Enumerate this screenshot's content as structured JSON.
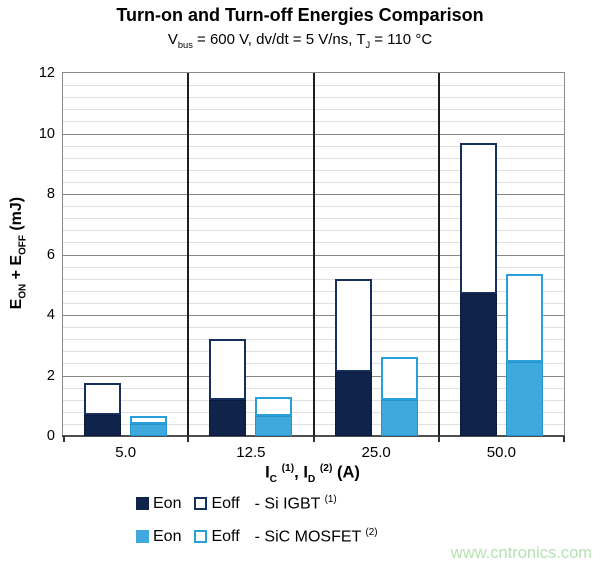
{
  "title": "Turn-on and Turn-off Energies Comparison",
  "subtitle_segments": [
    [
      "V",
      ""
    ],
    [
      "bus",
      "sub"
    ],
    [
      " = 600 V, dv/dt = 5 V/ns, T",
      ""
    ],
    [
      "J",
      "sub"
    ],
    [
      " = 110 °C",
      ""
    ]
  ],
  "y_axis": {
    "title_segments": [
      [
        "E",
        ""
      ],
      [
        "ON",
        "sub"
      ],
      [
        " + E",
        ""
      ],
      [
        "OFF",
        "sub"
      ],
      [
        " (mJ)",
        ""
      ]
    ],
    "ticks": [
      0,
      2,
      4,
      6,
      8,
      10,
      12
    ]
  },
  "x_axis": {
    "title_segments": [
      [
        "I",
        ""
      ],
      [
        "C",
        "sub"
      ],
      [
        " ",
        ""
      ],
      [
        "(1)",
        "sup"
      ],
      [
        ", I",
        ""
      ],
      [
        "D",
        "sub"
      ],
      [
        " ",
        ""
      ],
      [
        "(2)",
        "sup"
      ],
      [
        " (A)",
        ""
      ]
    ]
  },
  "chart_data": {
    "type": "bar",
    "stacked": true,
    "title": "Turn-on and Turn-off Energies Comparison",
    "subtitle": "Vbus = 600 V, dv/dt = 5 V/ns, TJ = 110 °C",
    "xlabel": "IC (1), ID (2) (A)",
    "ylabel": "EON + EOFF (mJ)",
    "categories": [
      "5.0",
      "12.5",
      "25.0",
      "50.0"
    ],
    "series": [
      {
        "name": "Eon - Si IGBT (1)",
        "style": "filled",
        "color": "#10234a",
        "border": "#0b1b39",
        "values": [
          0.7,
          1.2,
          2.1,
          4.7
        ]
      },
      {
        "name": "Eoff - Si IGBT (1)",
        "style": "outline",
        "color": "#15305e",
        "border": "#15305e",
        "values": [
          1.05,
          2.0,
          3.1,
          5.0
        ]
      },
      {
        "name": "Eon - SiC MOSFET (2)",
        "style": "filled",
        "color": "#3fa8dc",
        "border": "#2593cc",
        "values": [
          0.4,
          0.65,
          1.2,
          2.45
        ]
      },
      {
        "name": "Eoff - SiC MOSFET (2)",
        "style": "outline",
        "color": "#2aa0da",
        "border": "#2aa0da",
        "values": [
          0.25,
          0.65,
          1.4,
          2.9
        ]
      }
    ],
    "stack_totals": {
      "si_igbt": [
        1.75,
        3.2,
        5.2,
        9.7
      ],
      "sic_mosfet": [
        0.65,
        1.3,
        2.6,
        5.35
      ]
    },
    "stacks": [
      [
        0,
        1
      ],
      [
        2,
        3
      ]
    ],
    "ylim": [
      0,
      12
    ],
    "major_step": 2,
    "minor_step": 0.4,
    "grid": true,
    "legend_position": "bottom"
  },
  "legend": {
    "rows": [
      {
        "entries": [
          {
            "swatch": "filled",
            "color": "#10234a",
            "label": "Eon"
          },
          {
            "swatch": "outline",
            "color": "#15305e",
            "label": "Eoff"
          }
        ],
        "suffix": "- Si IGBT",
        "sup": "(1)"
      },
      {
        "entries": [
          {
            "swatch": "filled",
            "color": "#3fa8dc",
            "label": "Eon"
          },
          {
            "swatch": "outline",
            "color": "#2aa0da",
            "label": "Eoff"
          }
        ],
        "suffix": "- SiC MOSFET",
        "sup": "(2)"
      }
    ]
  },
  "watermark": {
    "text": "www.cntronics.com",
    "color": "#b5e3b2"
  },
  "colors": {
    "navy": "#10234a",
    "light_blue": "#3fa8dc",
    "minor_grid": "#e0e0e0",
    "major_grid": "#878787",
    "separator": "#1f1f1f",
    "plot_border": "#8a8a8a",
    "baseline": "#4f4f4f"
  }
}
